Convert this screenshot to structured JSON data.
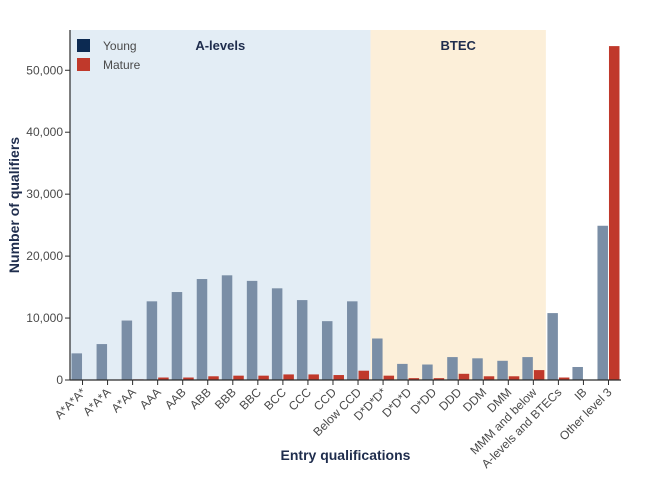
{
  "chart_data": {
    "type": "bar",
    "xlabel": "Entry qualifications",
    "ylabel": "Number of qualifiers",
    "ylim": [
      0,
      56500
    ],
    "yticks": [
      0,
      10000,
      20000,
      30000,
      40000,
      50000
    ],
    "ytick_labels": [
      "0",
      "10,000",
      "20,000",
      "30,000",
      "40,000",
      "50,000"
    ],
    "categories": [
      "A*A*A*",
      "A*A*A",
      "A*AA",
      "AAA",
      "AAB",
      "ABB",
      "BBB",
      "BBC",
      "BCC",
      "CCC",
      "CCD",
      "Below CCD",
      "D*D*D*",
      "D*D*D",
      "D*DD",
      "DDD",
      "DDM",
      "DMM",
      "MMM and below",
      "A-levels and BTECs",
      "IB",
      "Other level 3"
    ],
    "series": [
      {
        "name": "Young",
        "color": "#7a8ea6",
        "values": [
          4300,
          5800,
          9600,
          12700,
          14200,
          16300,
          16900,
          16000,
          14800,
          12900,
          9500,
          12700,
          6700,
          2600,
          2500,
          3700,
          3500,
          3100,
          3700,
          10800,
          2100,
          24900
        ]
      },
      {
        "name": "Mature",
        "color": "#c0392b",
        "values": [
          0,
          0,
          100,
          400,
          400,
          600,
          700,
          700,
          900,
          900,
          800,
          1500,
          700,
          300,
          300,
          1000,
          600,
          600,
          1600,
          400,
          0,
          53900
        ]
      }
    ],
    "bands": [
      {
        "label": "A-levels",
        "from_category": "A*A*A*",
        "to_category": "Below CCD",
        "color": "#e3edf5"
      },
      {
        "label": "BTEC",
        "from_category": "D*D*D*",
        "to_category": "MMM and below",
        "color": "#fcefd9"
      }
    ],
    "legend_position": "top-left",
    "legend_swatch_colors": {
      "Young": "#0c2a52",
      "Mature": "#c0392b"
    },
    "grid": false
  }
}
